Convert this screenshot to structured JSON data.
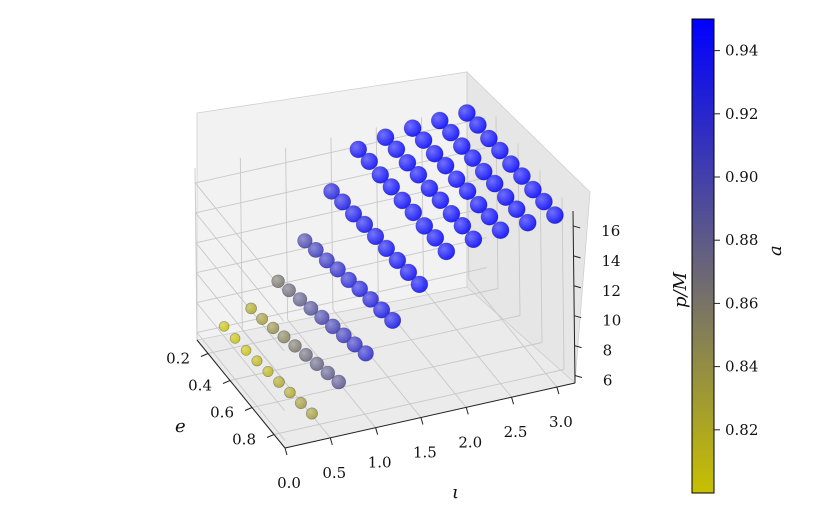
{
  "chart_data": {
    "type": "scatter",
    "projection": "3d",
    "title": "",
    "xlabel": "e",
    "ylabel": "ι",
    "zlabel": "p/M",
    "colorbar_label": "a",
    "x_ticks": [
      "0.2",
      "0.4",
      "0.6",
      "0.8"
    ],
    "y_ticks": [
      "0.0",
      "0.5",
      "1.0",
      "1.5",
      "2.0",
      "2.5",
      "3.0"
    ],
    "z_ticks": [
      "6",
      "8",
      "10",
      "12",
      "14",
      "16"
    ],
    "colorbar_ticks": [
      "0.82",
      "0.84",
      "0.86",
      "0.88",
      "0.90",
      "0.92",
      "0.94"
    ],
    "xlim": [
      0.1,
      0.9
    ],
    "ylim": [
      0.0,
      3.2
    ],
    "zlim": [
      5.5,
      17.0
    ],
    "clim": [
      0.8,
      0.95
    ],
    "colormap": [
      "#c8c000",
      "#0000ff"
    ],
    "grid": true,
    "e_values": [
      0.1,
      0.2,
      0.3,
      0.4,
      0.5,
      0.6,
      0.7,
      0.8,
      0.9
    ],
    "iota_values": [
      0.3,
      0.6,
      0.9,
      1.2,
      1.5,
      1.8,
      2.1,
      2.4,
      2.7,
      3.0
    ],
    "p_grid": [
      [
        6.0,
        6.8,
        8.2,
        10.5,
        13.4,
        15.8,
        16.2,
        16.4,
        16.5,
        16.6
      ],
      [
        6.1,
        7.0,
        8.5,
        10.8,
        13.6,
        15.9,
        16.3,
        16.5,
        16.6,
        16.7
      ],
      [
        6.2,
        7.3,
        8.8,
        11.0,
        13.7,
        15.9,
        16.3,
        16.5,
        16.6,
        16.7
      ],
      [
        6.4,
        7.6,
        9.1,
        11.3,
        13.9,
        16.0,
        16.4,
        16.6,
        16.7,
        16.8
      ],
      [
        6.6,
        7.9,
        9.4,
        11.5,
        14.0,
        16.0,
        16.4,
        16.6,
        16.7,
        16.8
      ],
      [
        6.8,
        8.2,
        9.7,
        11.8,
        14.1,
        16.1,
        16.5,
        16.7,
        16.8,
        16.9
      ],
      [
        7.0,
        8.5,
        10.0,
        12.0,
        14.2,
        16.1,
        16.5,
        16.7,
        16.8,
        16.9
      ],
      [
        7.2,
        8.8,
        10.3,
        12.2,
        14.3,
        16.2,
        16.6,
        16.8,
        16.9,
        17.0
      ],
      [
        7.4,
        9.1,
        10.6,
        12.4,
        14.4,
        16.2,
        16.6,
        16.8,
        16.9,
        17.0
      ]
    ],
    "a_grid": [
      [
        0.8,
        0.82,
        0.86,
        0.9,
        0.93,
        0.945,
        0.948,
        0.95,
        0.95,
        0.95
      ],
      [
        0.8,
        0.83,
        0.87,
        0.91,
        0.935,
        0.946,
        0.948,
        0.95,
        0.95,
        0.95
      ],
      [
        0.8,
        0.84,
        0.88,
        0.915,
        0.94,
        0.947,
        0.949,
        0.95,
        0.95,
        0.95
      ],
      [
        0.81,
        0.85,
        0.89,
        0.92,
        0.94,
        0.947,
        0.949,
        0.95,
        0.95,
        0.95
      ],
      [
        0.81,
        0.86,
        0.9,
        0.925,
        0.942,
        0.948,
        0.949,
        0.95,
        0.95,
        0.95
      ],
      [
        0.82,
        0.87,
        0.905,
        0.93,
        0.943,
        0.948,
        0.95,
        0.95,
        0.95,
        0.95
      ],
      [
        0.82,
        0.875,
        0.91,
        0.93,
        0.944,
        0.948,
        0.95,
        0.95,
        0.95,
        0.95
      ],
      [
        0.83,
        0.88,
        0.915,
        0.935,
        0.945,
        0.949,
        0.95,
        0.95,
        0.95,
        0.95
      ],
      [
        0.83,
        0.885,
        0.92,
        0.937,
        0.946,
        0.949,
        0.95,
        0.95,
        0.95,
        0.95
      ]
    ]
  }
}
